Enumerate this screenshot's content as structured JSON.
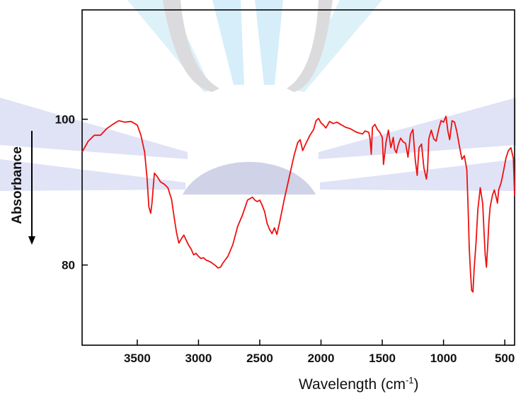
{
  "chart_data": {
    "type": "line",
    "title": "",
    "xlabel": "Wavelength (cm",
    "xlabel_superscript": "-1",
    "xlabel_suffix": ")",
    "ylabel": "Absorbance",
    "xlim": [
      3950,
      420
    ],
    "ylim": [
      69,
      115
    ],
    "x_reversed": true,
    "xticks": [
      3500,
      3000,
      2500,
      2000,
      1500,
      1000,
      500
    ],
    "xtick_labels": [
      "3500",
      "3000",
      "2500",
      "2000",
      "1500",
      "1000",
      "500"
    ],
    "yticks": [
      80,
      100
    ],
    "ytick_labels": [
      "80",
      "100"
    ],
    "grid": false,
    "legend": "none",
    "line_color": "#ee1111",
    "series": [
      {
        "x": [
          3950,
          3900,
          3850,
          3800,
          3750,
          3700,
          3650,
          3600,
          3550,
          3500,
          3470,
          3440,
          3420,
          3405,
          3390,
          3380,
          3360,
          3340,
          3310,
          3280,
          3250,
          3220,
          3200,
          3180,
          3160,
          3140,
          3120,
          3100,
          3080,
          3060,
          3040,
          3020,
          3000,
          2980,
          2960,
          2940,
          2900,
          2860,
          2840,
          2820,
          2800,
          2760,
          2720,
          2680,
          2640,
          2600,
          2560,
          2540,
          2520,
          2500,
          2480,
          2460,
          2440,
          2420,
          2400,
          2380,
          2360,
          2340,
          2300,
          2260,
          2220,
          2190,
          2170,
          2150,
          2120,
          2090,
          2060,
          2040,
          2020,
          2000,
          1980,
          1960,
          1930,
          1900,
          1870,
          1840,
          1800,
          1760,
          1720,
          1690,
          1660,
          1640,
          1610,
          1600,
          1590,
          1580,
          1560,
          1540,
          1520,
          1500,
          1490,
          1470,
          1450,
          1430,
          1410,
          1400,
          1385,
          1370,
          1350,
          1330,
          1310,
          1290,
          1270,
          1250,
          1230,
          1215,
          1200,
          1180,
          1160,
          1140,
          1130,
          1120,
          1100,
          1080,
          1060,
          1040,
          1020,
          1000,
          980,
          965,
          950,
          930,
          910,
          890,
          870,
          850,
          830,
          810,
          800,
          790,
          780,
          770,
          760,
          750,
          735,
          720,
          700,
          680,
          670,
          660,
          650,
          640,
          630,
          620,
          600,
          585,
          570,
          560,
          550,
          530,
          510,
          490,
          470,
          450,
          430,
          420
        ],
        "y": [
          95.5,
          97,
          97.8,
          97.8,
          98.7,
          99.3,
          99.8,
          99.6,
          99.7,
          99.2,
          97.8,
          95.5,
          92,
          88,
          87.1,
          88.5,
          92.6,
          92.2,
          91.4,
          91.1,
          90.6,
          89,
          86.7,
          84.5,
          83,
          83.6,
          84.1,
          83.4,
          82.7,
          82.2,
          81.4,
          81.6,
          81.2,
          80.9,
          81,
          80.7,
          80.4,
          79.9,
          79.6,
          79.7,
          80.3,
          81.2,
          82.8,
          85.3,
          86.9,
          88.9,
          89.3,
          88.9,
          88.7,
          88.9,
          88.2,
          87.3,
          85.7,
          84.9,
          84.3,
          85.1,
          84.2,
          85.7,
          89,
          92,
          95,
          96.8,
          97.2,
          95.7,
          96.8,
          97.8,
          98.6,
          99.8,
          100.1,
          99.5,
          99.2,
          98.8,
          99.7,
          99.4,
          99.6,
          99.3,
          98.9,
          98.7,
          98.3,
          98.1,
          98,
          98.4,
          98.2,
          97.3,
          95.2,
          98.9,
          99.3,
          98.6,
          98.2,
          97.5,
          93.8,
          96.8,
          98.5,
          96.1,
          97.5,
          95.9,
          95.4,
          96.5,
          97.4,
          96.9,
          96.7,
          94.8,
          97.9,
          98.6,
          94.3,
          92.3,
          96.1,
          96.6,
          93.3,
          91.8,
          93.2,
          97.3,
          98.5,
          97.3,
          97,
          98.6,
          99.8,
          99.6,
          100.4,
          98.4,
          97.2,
          99.8,
          99.6,
          98.2,
          96.3,
          94.5,
          95,
          93.1,
          88.3,
          82.2,
          79,
          76.5,
          76.3,
          79.5,
          83,
          87.6,
          90.6,
          88.4,
          84.8,
          81.4,
          79.7,
          82.4,
          85.9,
          87.9,
          89.6,
          90.3,
          89.3,
          88.5,
          90.3,
          91.3,
          92.9,
          94.7,
          95.7,
          96.1,
          94.6,
          89.5
        ]
      }
    ]
  }
}
